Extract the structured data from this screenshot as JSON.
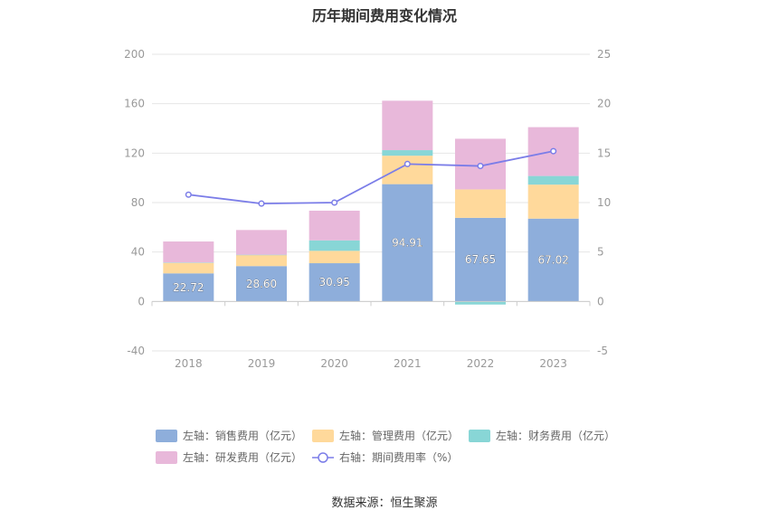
{
  "title": "历年期间费用变化情况",
  "source": "数据来源：恒生聚源",
  "chart_data": {
    "type": "bar",
    "stacked": true,
    "categories": [
      "2018",
      "2019",
      "2020",
      "2021",
      "2022",
      "2023"
    ],
    "left_axis": {
      "ylim": [
        -40,
        200
      ],
      "ticks": [
        -40,
        0,
        40,
        80,
        120,
        160,
        200
      ]
    },
    "right_axis": {
      "ylim": [
        -5,
        25
      ],
      "ticks": [
        -5,
        0,
        5,
        10,
        15,
        20,
        25
      ]
    },
    "series": [
      {
        "name": "左轴：销售费用（亿元）",
        "axis": "left",
        "type": "bar",
        "color": "#8eaedb",
        "values": [
          22.72,
          28.6,
          30.95,
          94.91,
          67.65,
          67.02
        ],
        "show_labels": true
      },
      {
        "name": "左轴：管理费用（亿元）",
        "axis": "left",
        "type": "bar",
        "color": "#ffd99b",
        "values": [
          8.5,
          9.0,
          10.0,
          23.0,
          23.0,
          27.5
        ]
      },
      {
        "name": "左轴：财务费用（亿元）",
        "axis": "left",
        "type": "bar",
        "color": "#88d6d6",
        "values": [
          0.3,
          0.2,
          8.5,
          4.5,
          -2.5,
          7.0
        ]
      },
      {
        "name": "左轴：研发费用（亿元）",
        "axis": "left",
        "type": "bar",
        "color": "#e8b8da",
        "values": [
          17.0,
          20.0,
          24.0,
          40.0,
          41.0,
          39.5
        ]
      },
      {
        "name": "右轴：期间费用率（%）",
        "axis": "right",
        "type": "line",
        "color": "#7b7de8",
        "values": [
          10.8,
          9.9,
          10.0,
          13.9,
          13.7,
          15.2
        ]
      }
    ],
    "grid": true,
    "legend_position": "bottom"
  }
}
